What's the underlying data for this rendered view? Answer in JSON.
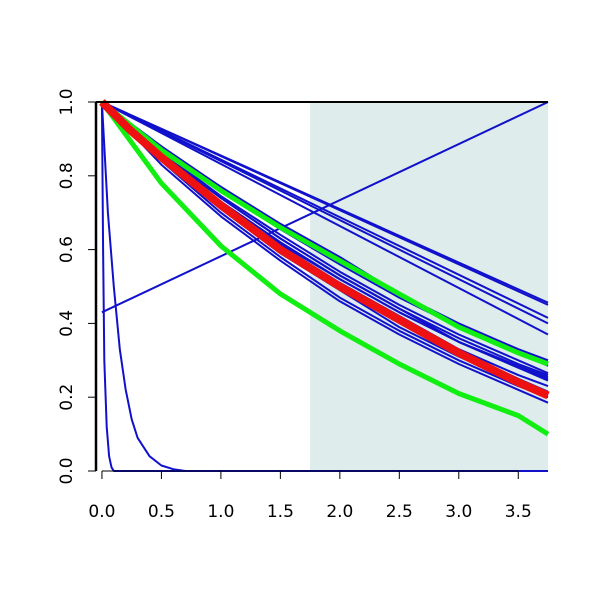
{
  "chart_data": {
    "type": "line",
    "title": "",
    "xlabel": "",
    "ylabel": "",
    "xlim": [
      -0.05,
      3.75
    ],
    "ylim": [
      0.0,
      1.0
    ],
    "x_ticks": [
      "0.0",
      "0.5",
      "1.0",
      "1.5",
      "2.0",
      "2.5",
      "3.0",
      "3.5"
    ],
    "y_ticks": [
      "0.0",
      "0.2",
      "0.4",
      "0.6",
      "0.8",
      "1.0"
    ],
    "shaded_region": {
      "x_from": 1.75,
      "x_to": 3.75,
      "color": "#deeceb"
    },
    "colors": {
      "blue": "#1111cc",
      "red": "#ee1111",
      "green": "#11ee11",
      "axis": "#000000"
    },
    "series": [
      {
        "x": [
          0.0,
          3.75
        ],
        "y": [
          0.43,
          1.0
        ],
        "color": "#1111cc",
        "kind": "blue"
      },
      {
        "x": [
          0.0,
          0.05,
          0.1,
          0.15,
          0.2,
          0.25,
          0.3,
          0.4,
          0.5,
          0.6,
          0.7,
          3.75
        ],
        "y": [
          1.0,
          0.7,
          0.5,
          0.33,
          0.22,
          0.14,
          0.09,
          0.04,
          0.015,
          0.005,
          0.0,
          0.0
        ],
        "color": "#1111cc",
        "kind": "blue"
      },
      {
        "x": [
          0.0,
          0.01,
          0.02,
          0.04,
          0.06,
          0.08,
          0.1,
          3.75
        ],
        "y": [
          1.0,
          0.6,
          0.3,
          0.12,
          0.04,
          0.01,
          0.0,
          0.0
        ],
        "color": "#1111cc",
        "kind": "blue"
      },
      {
        "x": [
          0.0,
          3.75
        ],
        "y": [
          1.0,
          0.456
        ],
        "color": "#1111cc",
        "kind": "blue"
      },
      {
        "x": [
          0.0,
          3.75
        ],
        "y": [
          1.0,
          0.45
        ],
        "color": "#1111cc",
        "kind": "blue"
      },
      {
        "x": [
          0.0,
          3.75
        ],
        "y": [
          1.0,
          0.415
        ],
        "color": "#1111cc",
        "kind": "blue"
      },
      {
        "x": [
          0.0,
          3.75
        ],
        "y": [
          1.0,
          0.4
        ],
        "color": "#1111cc",
        "kind": "blue"
      },
      {
        "x": [
          0.0,
          3.75
        ],
        "y": [
          1.0,
          0.37
        ],
        "color": "#1111cc",
        "kind": "blue"
      },
      {
        "x": [
          0.0,
          0.5,
          1.0,
          1.5,
          2.0,
          2.5,
          3.0,
          3.5,
          3.75
        ],
        "y": [
          1.0,
          0.88,
          0.77,
          0.67,
          0.58,
          0.48,
          0.39,
          0.32,
          0.29
        ],
        "color": "#1111cc",
        "kind": "blue"
      },
      {
        "x": [
          0.0,
          0.5,
          1.0,
          1.5,
          2.0,
          2.5,
          3.0,
          3.5,
          3.75
        ],
        "y": [
          1.0,
          0.86,
          0.74,
          0.63,
          0.53,
          0.44,
          0.35,
          0.28,
          0.25
        ],
        "color": "#1111cc",
        "kind": "blue"
      },
      {
        "x": [
          0.0,
          0.5,
          1.0,
          1.5,
          2.0,
          2.5,
          3.0,
          3.5,
          3.75
        ],
        "y": [
          1.0,
          0.85,
          0.72,
          0.61,
          0.51,
          0.42,
          0.33,
          0.26,
          0.23
        ],
        "color": "#1111cc",
        "kind": "blue"
      },
      {
        "x": [
          0.0,
          0.5,
          1.0,
          1.5,
          2.0,
          2.5,
          3.0,
          3.5,
          3.75
        ],
        "y": [
          1.0,
          0.84,
          0.71,
          0.59,
          0.49,
          0.39,
          0.31,
          0.24,
          0.21
        ],
        "color": "#1111cc",
        "kind": "blue"
      },
      {
        "x": [
          0.0,
          0.5,
          1.0,
          1.5,
          2.0,
          2.5,
          3.0,
          3.5,
          3.75
        ],
        "y": [
          1.0,
          0.83,
          0.69,
          0.57,
          0.46,
          0.37,
          0.29,
          0.22,
          0.185
        ],
        "color": "#1111cc",
        "kind": "blue"
      },
      {
        "x": [
          0.0,
          0.5,
          1.0,
          1.5,
          2.0,
          2.5,
          3.0,
          3.5,
          3.75
        ],
        "y": [
          1.0,
          0.865,
          0.745,
          0.64,
          0.54,
          0.45,
          0.37,
          0.3,
          0.265
        ],
        "color": "#1111cc",
        "kind": "blue"
      },
      {
        "x": [
          0.0,
          0.5,
          1.0,
          1.5,
          2.0,
          2.5,
          3.0,
          3.5,
          3.75
        ],
        "y": [
          1.0,
          0.855,
          0.73,
          0.62,
          0.52,
          0.43,
          0.35,
          0.28,
          0.245
        ],
        "color": "#1111cc",
        "kind": "blue"
      },
      {
        "x": [
          0.0,
          0.5,
          1.0,
          1.5,
          2.0,
          2.5,
          3.0,
          3.5,
          3.75
        ],
        "y": [
          1.0,
          0.845,
          0.715,
          0.6,
          0.5,
          0.41,
          0.325,
          0.25,
          0.215
        ],
        "color": "#1111cc",
        "kind": "blue"
      },
      {
        "x": [
          0.0,
          0.5,
          1.0,
          1.5,
          2.0,
          2.5,
          3.0,
          3.5,
          3.75
        ],
        "y": [
          1.0,
          0.85,
          0.72,
          0.615,
          0.52,
          0.43,
          0.35,
          0.285,
          0.255
        ],
        "color": "#1111cc",
        "kind": "blue"
      },
      {
        "x": [
          0.0,
          0.5,
          1.0,
          1.5,
          2.0,
          2.5,
          3.0,
          3.5,
          3.75
        ],
        "y": [
          1.0,
          0.87,
          0.76,
          0.655,
          0.56,
          0.47,
          0.39,
          0.32,
          0.285
        ],
        "color": "#1111cc",
        "kind": "blue"
      },
      {
        "x": [
          0.0,
          0.5,
          1.0,
          1.5,
          2.0,
          2.5,
          3.0,
          3.5,
          3.75
        ],
        "y": [
          1.0,
          0.875,
          0.77,
          0.665,
          0.57,
          0.48,
          0.4,
          0.33,
          0.3
        ],
        "color": "#1111cc",
        "kind": "blue"
      },
      {
        "x": [
          0.0,
          0.5,
          1.0,
          1.5,
          2.0,
          2.5,
          3.0,
          3.5,
          3.75
        ],
        "y": [
          1.0,
          0.86,
          0.74,
          0.63,
          0.53,
          0.44,
          0.36,
          0.29,
          0.26
        ],
        "color": "#1111cc",
        "kind": "blue"
      },
      {
        "x": [
          0.0,
          0.5,
          1.0,
          1.5,
          2.0,
          2.5,
          3.0,
          3.5,
          3.75
        ],
        "y": [
          1.0,
          0.84,
          0.7,
          0.58,
          0.47,
          0.38,
          0.3,
          0.23,
          0.2
        ],
        "color": "#1111cc",
        "kind": "blue"
      },
      {
        "x": [
          0.0,
          0.5,
          1.0,
          1.5,
          2.0,
          2.5,
          3.0,
          3.5,
          3.75
        ],
        "y": [
          1.0,
          0.78,
          0.61,
          0.48,
          0.38,
          0.29,
          0.21,
          0.15,
          0.1
        ],
        "color": "#11ee11",
        "kind": "green"
      },
      {
        "x": [
          0.0,
          0.5,
          1.0,
          1.5,
          2.0,
          2.5,
          3.0,
          3.5,
          3.75
        ],
        "y": [
          1.0,
          0.87,
          0.76,
          0.66,
          0.57,
          0.48,
          0.39,
          0.32,
          0.29
        ],
        "color": "#11ee11",
        "kind": "green"
      },
      {
        "x": [
          0.0,
          0.25,
          0.5,
          1.0,
          1.5,
          2.0,
          2.5,
          3.0,
          3.5,
          3.75
        ],
        "y": [
          1.0,
          0.92,
          0.85,
          0.72,
          0.6,
          0.5,
          0.41,
          0.32,
          0.24,
          0.205
        ],
        "color": "#ee1111",
        "kind": "red"
      }
    ]
  }
}
